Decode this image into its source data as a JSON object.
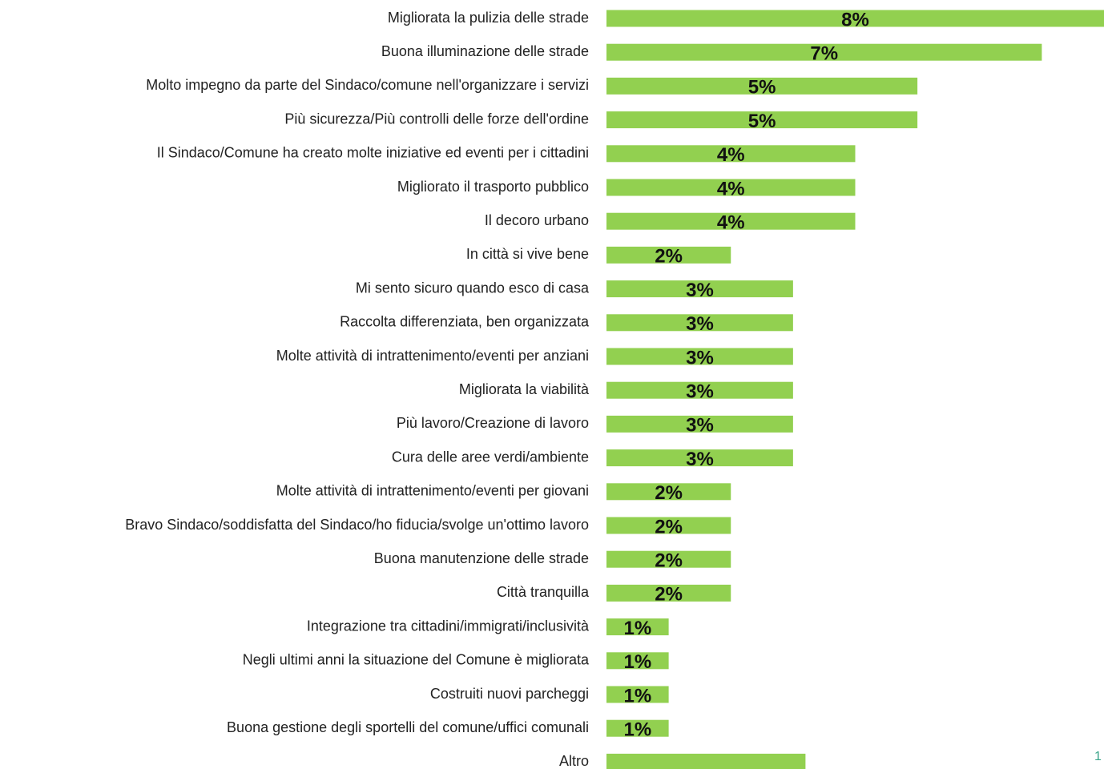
{
  "chart_data": {
    "type": "hbar",
    "categories": [
      "Migliorata la pulizia delle strade",
      "Buona illuminazione delle strade",
      "Molto impegno da parte del Sindaco/comune nell'organizzare i servizi",
      "Più sicurezza/Più controlli delle forze dell'ordine",
      "Il Sindaco/Comune ha creato molte iniziative ed eventi per i cittadini",
      "Migliorato il trasporto pubblico",
      "Il decoro urbano",
      "In città si vive bene",
      "Mi sento sicuro quando esco di casa",
      "Raccolta differenziata, ben organizzata",
      "Molte attività di intrattenimento/eventi per  anziani",
      "Migliorata la viabilità",
      "Più lavoro/Creazione di lavoro",
      "Cura delle aree verdi/ambiente",
      "Molte attività di intrattenimento/eventi per giovani ",
      "Bravo Sindaco/soddisfatta del Sindaco/ho fiducia/svolge un'ottimo lavoro",
      "Buona manutenzione delle strade",
      "Città tranquilla",
      "Integrazione tra cittadini/immigrati/inclusività",
      "Negli ultimi anni la situazione del Comune è migliorata",
      "Costruiti nuovi parcheggi",
      "Buona gestione degli sportelli del comune/uffici comunali",
      "Altro"
    ],
    "values": [
      8,
      7,
      5,
      5,
      4,
      4,
      4,
      2,
      3,
      3,
      3,
      3,
      3,
      3,
      2,
      2,
      2,
      2,
      1,
      1,
      1,
      1,
      3.2
    ],
    "value_labels": [
      "8%",
      "7%",
      "5%",
      "5%",
      "4%",
      "4%",
      "4%",
      "2%",
      "3%",
      "3%",
      "3%",
      "3%",
      "3%",
      "3%",
      "2%",
      "2%",
      "2%",
      "2%",
      "1%",
      "1%",
      "1%",
      "1%",
      null
    ],
    "color": "#92d050",
    "page_number": "1"
  }
}
